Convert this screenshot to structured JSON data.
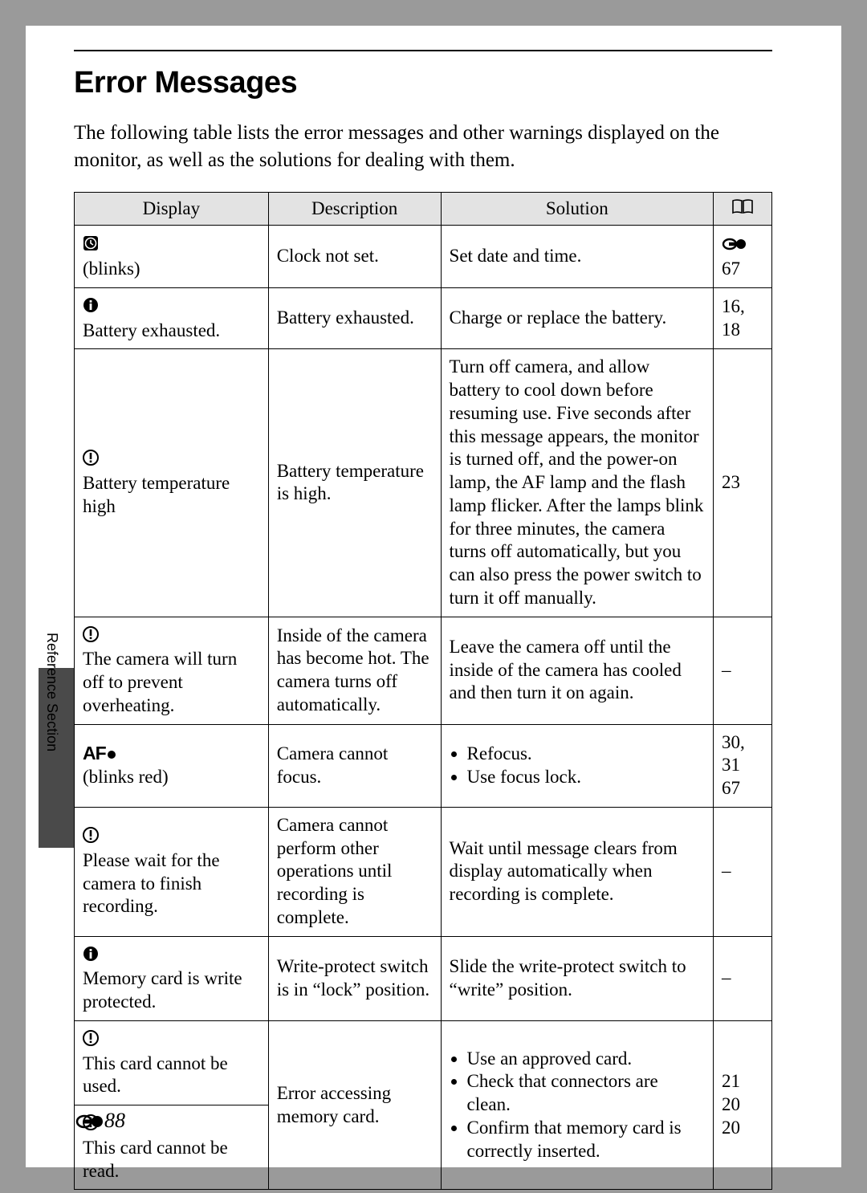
{
  "title": "Error Messages",
  "intro": "The following table lists the error messages and other warnings displayed on the monitor, as well as the solutions for dealing with them.",
  "side_label": "Reference Section",
  "page_number": "88",
  "headers": {
    "display": "Display",
    "description": "Description",
    "solution": "Solution"
  },
  "rows": [
    {
      "display_icon": "clock",
      "display_sub": "(blinks)",
      "description": "Clock not set.",
      "solution_type": "text",
      "solution": "Set date and time.",
      "ref_prefix_icon": true,
      "ref": "67"
    },
    {
      "display_icon": "info",
      "display_text": "Battery exhausted.",
      "description": "Battery exhausted.",
      "solution_type": "text",
      "solution": "Charge or replace the battery.",
      "ref": "16, 18"
    },
    {
      "display_icon": "warn",
      "display_text": "Battery temperature high",
      "description": "Battery temperature is high.",
      "solution_type": "text",
      "solution": "Turn off camera, and allow battery to cool down before resuming use. Five seconds after this message appears, the monitor is turned off, and the power-on lamp, the AF lamp and the flash lamp flicker. After the lamps blink for three minutes, the camera turns off automatically, but you can also press the power switch to turn it off manually.",
      "ref": "23"
    },
    {
      "display_icon": "warn",
      "display_text": "The camera will turn off to prevent overheating.",
      "description": "Inside of the camera has become hot. The camera turns off automatically.",
      "solution_type": "text",
      "solution": "Leave the camera off until the inside of the camera has cooled and then turn it on again.",
      "ref": "–"
    },
    {
      "display_icon": "af",
      "display_sub": "(blinks red)",
      "description": "Camera cannot focus.",
      "solution_type": "list",
      "solution_items": [
        "Refocus.",
        "Use focus lock."
      ],
      "ref": "30, 31\n67"
    },
    {
      "display_icon": "warn",
      "display_text": "Please wait for the camera to finish recording.",
      "description": "Camera cannot perform other operations until recording is complete.",
      "solution_type": "text",
      "solution": "Wait until message clears from display automatically when recording is complete.",
      "ref": "–"
    },
    {
      "display_icon": "info",
      "display_text": "Memory card is write protected.",
      "description": "Write-protect switch is in “lock” position.",
      "solution_type": "text",
      "solution": "Slide the write-protect switch to “write” position.",
      "ref": "–"
    },
    {
      "display_icon": "warn",
      "display_text": "This card cannot be used.",
      "display_icon2": "warn",
      "display_text2": "This card cannot be read.",
      "description": "Error accessing memory card.",
      "solution_type": "list",
      "solution_items": [
        "Use an approved card.",
        "Check that connectors are clean.",
        "Confirm that memory card is correctly inserted."
      ],
      "ref": "21\n20\n20"
    }
  ]
}
